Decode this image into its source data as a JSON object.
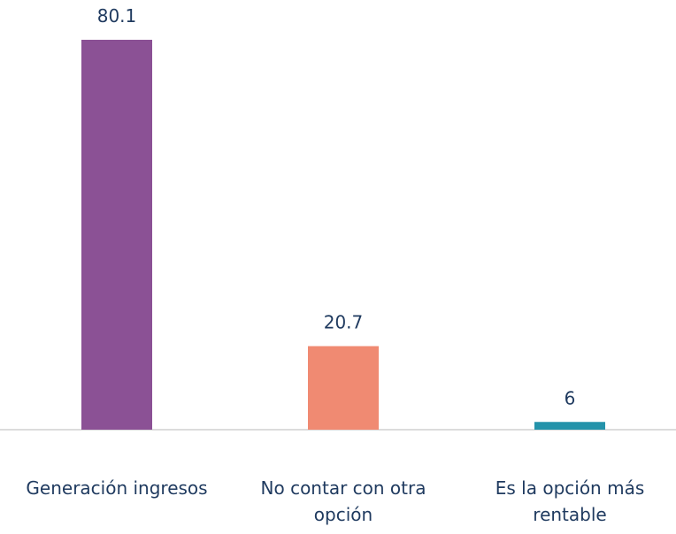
{
  "chart_data": {
    "type": "bar",
    "categories": [
      "Generación ingresos",
      "No contar con otra opción",
      "Es la opción más rentable"
    ],
    "values": [
      80.1,
      20.7,
      6
    ],
    "colors": [
      "#8b5195",
      "#f08a72",
      "#2493aa"
    ],
    "ylim": [
      4.5,
      80.1
    ]
  }
}
